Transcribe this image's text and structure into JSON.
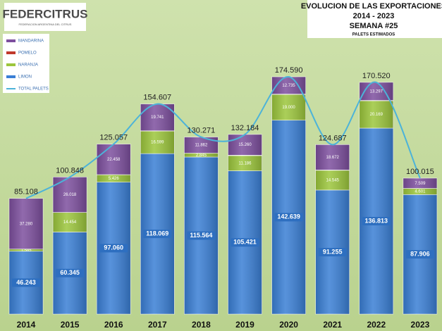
{
  "logo": {
    "name": "FEDERCITRUS",
    "tagline": "FEDERACION ARGENTINA DEL CITRUS"
  },
  "chart_data": {
    "type": "bar",
    "stacked": true,
    "title": "EVOLUCION DE LAS EXPORTACIONES",
    "subtitle": [
      "2014 - 2023",
      "SEMANA #25"
    ],
    "note": "PALETS ESTIMADOS",
    "categories": [
      "2014",
      "2015",
      "2016",
      "2017",
      "2018",
      "2019",
      "2020",
      "2021",
      "2022",
      "2023"
    ],
    "series": [
      {
        "name": "LIMON",
        "color": "#3a7fd5",
        "values": [
          46243,
          60345,
          97060,
          118069,
          115564,
          105421,
          142639,
          91255,
          136813,
          87906
        ],
        "value_labels": [
          "46.243",
          "60.345",
          "97.060",
          "118.069",
          "115.564",
          "105.421",
          "142.639",
          "91.255",
          "136.813",
          "87.906"
        ]
      },
      {
        "name": "NARANJA",
        "color": "#9cc63c",
        "values": [
          1585,
          14454,
          5426,
          16599,
          2845,
          11186,
          19000,
          14545,
          20169,
          4601
        ],
        "value_labels": [
          "1.585",
          "14.454",
          "5.426",
          "16.599",
          "2.845",
          "11.186",
          "19.000",
          "14.545",
          "20.169",
          "4.601"
        ]
      },
      {
        "name": "POMELO",
        "color": "#c0392b",
        "values": [
          0,
          31,
          113,
          198,
          0,
          317,
          216,
          215,
          241,
          0
        ]
      },
      {
        "name": "MANDARINA",
        "color": "#7d4f9e",
        "values": [
          37280,
          26018,
          22458,
          19741,
          11862,
          15260,
          12735,
          18672,
          13297,
          7509
        ],
        "value_labels": [
          "37.280",
          "26.018",
          "22.458",
          "19.741",
          "11.862",
          "15.260",
          "12.735",
          "18.672",
          "13.297",
          "7.509"
        ]
      },
      {
        "name": "TOTAL PALETS",
        "color": "#4cb3d9",
        "type": "line",
        "values": [
          85108,
          100848,
          125057,
          154607,
          130271,
          132184,
          174590,
          124687,
          170520,
          100015
        ],
        "value_labels": [
          "85.108",
          "100.848",
          "125.057",
          "154.607",
          "130.271",
          "132.184",
          "174.590",
          "124.687",
          "170.520",
          "100.015"
        ]
      }
    ]
  }
}
